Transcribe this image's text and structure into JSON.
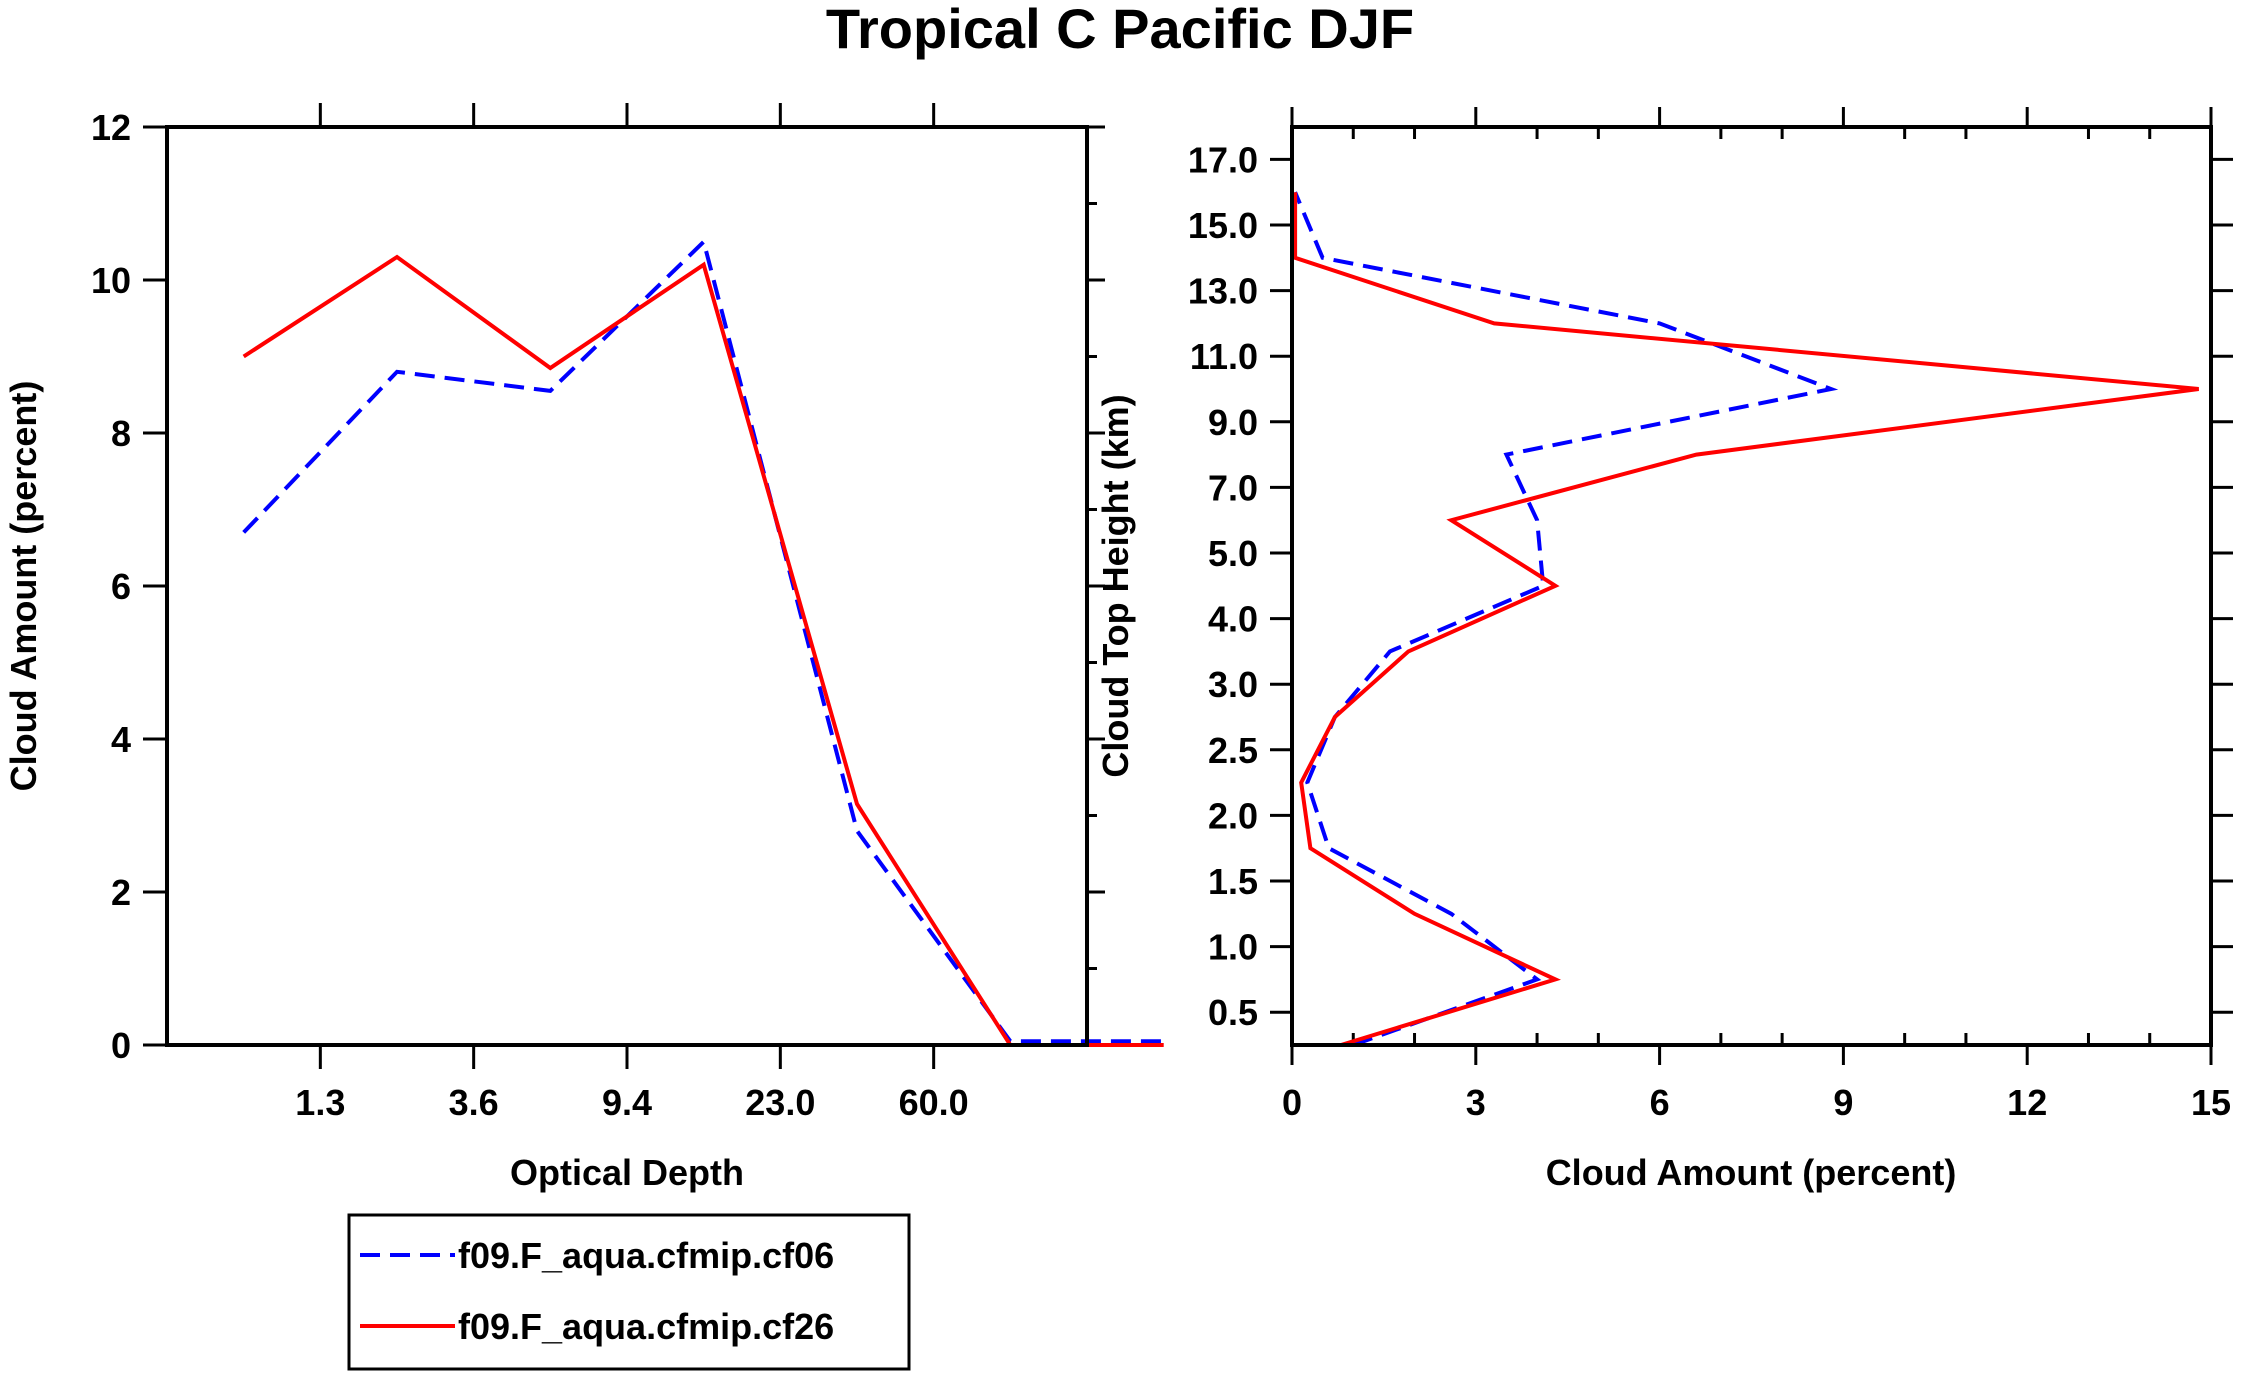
{
  "figure_title": "Tropical C Pacific DJF",
  "legend": [
    {
      "label": "f09.F_aqua.cfmip.cf06",
      "color": "#0000ff",
      "dash": "dashed"
    },
    {
      "label": "f09.F_aqua.cfmip.cf26",
      "color": "#ff0000",
      "dash": "solid"
    }
  ],
  "chart_data": [
    {
      "type": "line",
      "title": "",
      "xlabel": "Optical Depth",
      "ylabel": "Cloud Amount (percent)",
      "x_tick_labels": [
        "1.3",
        "3.6",
        "9.4",
        "23.0",
        "60.0"
      ],
      "x_bins": [
        "0.15",
        "0.8",
        "2.45",
        "6.5",
        "16.2",
        "41.5",
        "100.0"
      ],
      "ylim": [
        0,
        12
      ],
      "y_ticks": [
        0,
        2,
        4,
        6,
        8,
        10,
        12
      ],
      "y_tick_labels": [
        "0",
        "2",
        "4",
        "6",
        "8",
        "10",
        "12"
      ],
      "series": [
        {
          "name": "f09.F_aqua.cfmip.cf06",
          "color": "#0000ff",
          "style": "dashed",
          "x": [
            0,
            1,
            2,
            3,
            4,
            5,
            6
          ],
          "values": [
            6.7,
            8.8,
            8.55,
            10.5,
            2.8,
            0.05,
            0.05
          ]
        },
        {
          "name": "f09.F_aqua.cfmip.cf26",
          "color": "#ff0000",
          "style": "solid",
          "x": [
            0,
            1,
            2,
            3,
            4,
            5,
            6
          ],
          "values": [
            9.0,
            10.3,
            8.85,
            10.2,
            3.15,
            0.0,
            0.0
          ]
        }
      ]
    },
    {
      "type": "line",
      "title": "",
      "xlabel": "Cloud Amount (percent)",
      "ylabel": "Cloud Top Height (km)",
      "xlim": [
        0,
        15
      ],
      "x_ticks": [
        0,
        3,
        6,
        9,
        12,
        15
      ],
      "x_tick_labels": [
        "0",
        "3",
        "6",
        "9",
        "12",
        "15"
      ],
      "y_tick_labels": [
        "0.5",
        "1.0",
        "1.5",
        "2.0",
        "2.5",
        "3.0",
        "4.0",
        "5.0",
        "7.0",
        "9.0",
        "11.0",
        "13.0",
        "15.0",
        "17.0"
      ],
      "y_levels_km": [
        0.25,
        0.75,
        1.25,
        1.75,
        2.25,
        2.75,
        3.5,
        4.5,
        6.0,
        8.0,
        10.0,
        12.0,
        14.0,
        16.0
      ],
      "series": [
        {
          "name": "f09.F_aqua.cfmip.cf06",
          "color": "#0000ff",
          "style": "dashed",
          "values": [
            1.0,
            4.0,
            2.6,
            0.6,
            0.25,
            0.7,
            1.6,
            4.1,
            4.0,
            3.5,
            8.8,
            6.0,
            0.5,
            0.05
          ]
        },
        {
          "name": "f09.F_aqua.cfmip.cf26",
          "color": "#ff0000",
          "style": "solid",
          "values": [
            0.8,
            4.3,
            2.0,
            0.3,
            0.15,
            0.7,
            1.9,
            4.3,
            2.6,
            6.6,
            14.8,
            3.3,
            0.05,
            0.05
          ]
        }
      ]
    }
  ]
}
